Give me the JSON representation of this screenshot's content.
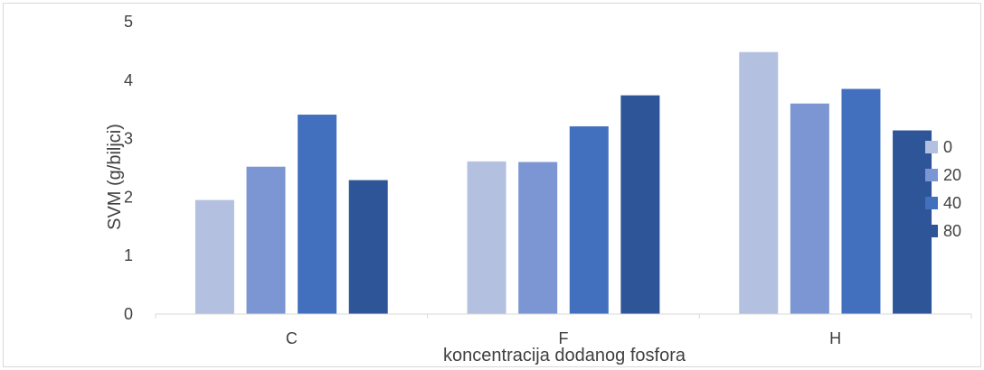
{
  "chart_data": {
    "type": "bar",
    "title": "",
    "xlabel": "koncentracija dodanog fosfora",
    "ylabel": "SVM (g/biljci)",
    "categories": [
      "C",
      "F",
      "H"
    ],
    "ylim": [
      0,
      5
    ],
    "yticks": [
      0,
      1,
      2,
      3,
      4,
      5
    ],
    "grid": false,
    "legend_position": "right",
    "series": [
      {
        "name": "0",
        "color": "#b4c0e0",
        "values": [
          1.95,
          2.61,
          4.48
        ]
      },
      {
        "name": "20",
        "color": "#7b96d2",
        "values": [
          2.52,
          2.6,
          3.6
        ]
      },
      {
        "name": "40",
        "color": "#4270be",
        "values": [
          3.41,
          3.21,
          3.85
        ]
      },
      {
        "name": "80",
        "color": "#2e5597",
        "values": [
          2.29,
          3.74,
          3.14
        ]
      }
    ]
  }
}
